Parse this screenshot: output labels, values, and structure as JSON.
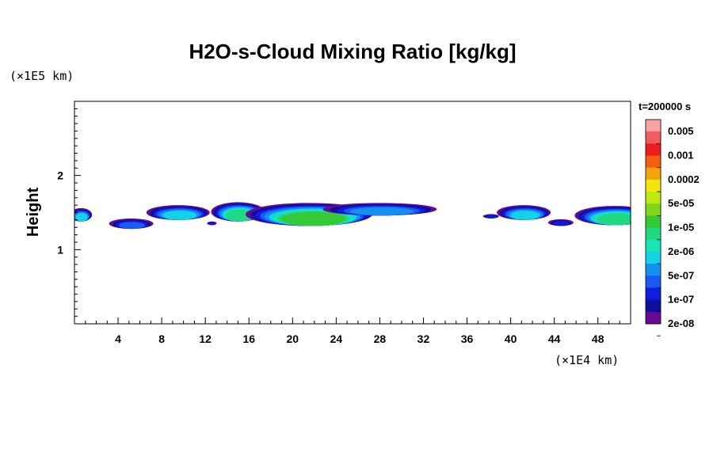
{
  "chart_data": {
    "type": "heatmap",
    "title": "H2O-s-Cloud Mixing Ratio [kg/kg]",
    "xlabel": "",
    "ylabel": "Height",
    "x_unit_label": "(×1E4 km)",
    "y_unit_label": "(×1E5 km)",
    "time_label": "t=200000 s",
    "xlim": [
      0,
      51
    ],
    "ylim": [
      0,
      3
    ],
    "x_ticks": [
      "4",
      "8",
      "12",
      "16",
      "20",
      "24",
      "28",
      "32",
      "36",
      "40",
      "44",
      "48"
    ],
    "y_ticks": [
      "1",
      "2"
    ],
    "grid": false,
    "colorbar": {
      "labels": [
        "0.005",
        "0.001",
        "0.0002",
        "5e-05",
        "1e-05",
        "2e-06",
        "5e-07",
        "1e-07",
        "2e-08"
      ],
      "colors": [
        "#f9a3a3",
        "#f15c5c",
        "#ee1c1c",
        "#f65f0f",
        "#f5a30b",
        "#f2e60d",
        "#c0e813",
        "#7fd817",
        "#36c936",
        "#20d880",
        "#18e5b7",
        "#14d2e6",
        "#1590f2",
        "#1a5bf3",
        "#0e1de0",
        "#0b0f9c",
        "#6a0a94"
      ]
    },
    "clouds": [
      {
        "x": 0.6,
        "top": 1.56,
        "bottom": 1.38
      },
      {
        "x": 5.2,
        "top": 1.42,
        "bottom": 1.28
      },
      {
        "x": 9.5,
        "top": 1.6,
        "bottom": 1.4
      },
      {
        "x": 12.6,
        "top": 1.38,
        "bottom": 1.33
      },
      {
        "x": 15.0,
        "top": 1.64,
        "bottom": 1.38
      },
      {
        "x": 21.5,
        "top": 1.63,
        "bottom": 1.32
      },
      {
        "x": 28.0,
        "top": 1.63,
        "bottom": 1.46
      },
      {
        "x": 38.2,
        "top": 1.48,
        "bottom": 1.42
      },
      {
        "x": 41.2,
        "top": 1.6,
        "bottom": 1.4
      },
      {
        "x": 44.6,
        "top": 1.41,
        "bottom": 1.32
      },
      {
        "x": 49.5,
        "top": 1.59,
        "bottom": 1.33
      }
    ]
  }
}
